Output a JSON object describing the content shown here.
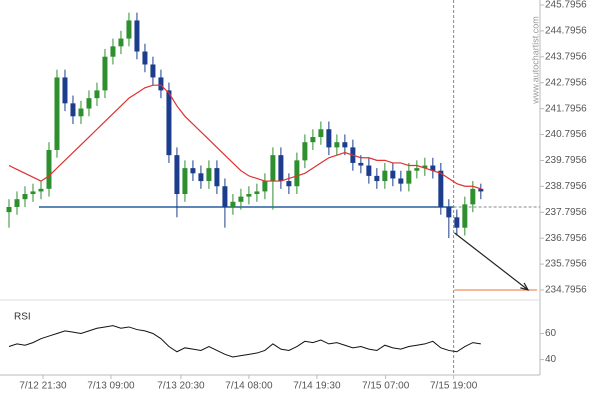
{
  "chart_data": [
    {
      "type": "candlestick",
      "watermark": "www.autochartist.com",
      "xlim": [
        -0.5,
        66.4
      ],
      "xticks": [
        {
          "value": 4.25,
          "label": "7/12 21:30"
        },
        {
          "value": 12.75,
          "label": "7/13 09:00"
        },
        {
          "value": 21.5,
          "label": "7/13 20:30"
        },
        {
          "value": 30,
          "label": "7/14 08:00"
        },
        {
          "value": 38.5,
          "label": "7/14 19:30"
        },
        {
          "value": 47.1,
          "label": "7/15 07:00"
        },
        {
          "value": 55.6,
          "label": "7/15 19:00"
        }
      ],
      "ylim": [
        234.7956,
        245.7956
      ],
      "yticks": [
        234.7956,
        235.7956,
        236.7956,
        237.7956,
        238.7956,
        239.7956,
        240.7956,
        241.7956,
        242.7956,
        243.7956,
        244.7956,
        245.7956
      ],
      "up_color": "#2f8f2f",
      "down_color": "#1c3c8c",
      "open": [
        237.8,
        238.0,
        238.3,
        238.5,
        238.6,
        238.7,
        240.2,
        243.0,
        242.0,
        241.5,
        241.8,
        242.2,
        242.5,
        243.8,
        244.2,
        244.5,
        245.2,
        244.0,
        243.5,
        243.0,
        242.5,
        240.0,
        238.5,
        239.5,
        239.3,
        239.0,
        239.5,
        238.8,
        238.0,
        238.2,
        238.4,
        238.5,
        238.6,
        239.0,
        240.0,
        239.0,
        238.8,
        239.8,
        240.5,
        240.7,
        241.0,
        240.3,
        240.5,
        240.3,
        239.7,
        239.6,
        239.2,
        239.0,
        239.4,
        239.1,
        238.9,
        239.4,
        239.5,
        239.6,
        239.4,
        238.0,
        237.6,
        237.2,
        238.1,
        238.7
      ],
      "high": [
        238.3,
        238.6,
        238.8,
        238.9,
        239.0,
        240.5,
        243.3,
        243.3,
        242.3,
        242.1,
        242.5,
        242.8,
        244.1,
        244.5,
        244.8,
        245.5,
        245.5,
        244.3,
        243.8,
        243.3,
        242.8,
        240.3,
        239.8,
        239.8,
        239.6,
        239.8,
        239.8,
        239.1,
        238.5,
        238.7,
        238.8,
        238.9,
        239.3,
        240.3,
        240.3,
        239.3,
        240.1,
        240.8,
        241.0,
        241.3,
        241.3,
        240.8,
        240.8,
        240.6,
        240.0,
        239.9,
        239.5,
        239.7,
        239.7,
        239.4,
        239.7,
        239.8,
        239.9,
        239.9,
        239.7,
        238.3,
        237.9,
        238.4,
        239.0,
        238.9
      ],
      "low": [
        237.2,
        237.7,
        238.0,
        238.2,
        238.3,
        238.4,
        239.9,
        241.7,
        241.2,
        241.2,
        241.5,
        241.9,
        242.2,
        243.5,
        243.9,
        244.2,
        243.7,
        243.2,
        242.7,
        242.2,
        239.7,
        237.6,
        238.2,
        239.0,
        238.7,
        238.7,
        238.5,
        237.2,
        237.7,
        237.9,
        238.1,
        238.2,
        238.3,
        237.9,
        238.7,
        238.5,
        238.5,
        239.5,
        240.2,
        240.4,
        240.0,
        240.0,
        240.0,
        239.4,
        239.3,
        238.9,
        238.7,
        238.7,
        238.8,
        238.6,
        238.6,
        239.1,
        239.2,
        239.1,
        237.7,
        236.8,
        236.9,
        236.9,
        237.8,
        238.3
      ],
      "close": [
        238.0,
        238.3,
        238.5,
        238.6,
        238.7,
        240.2,
        243.0,
        242.0,
        241.5,
        241.8,
        242.2,
        242.5,
        243.8,
        244.2,
        244.5,
        245.2,
        244.0,
        243.5,
        243.0,
        242.5,
        240.0,
        238.5,
        239.5,
        239.3,
        239.0,
        239.5,
        238.8,
        238.0,
        238.2,
        238.4,
        238.5,
        238.6,
        239.0,
        240.0,
        239.0,
        238.8,
        239.8,
        240.5,
        240.7,
        241.0,
        240.3,
        240.5,
        240.3,
        239.7,
        239.6,
        239.2,
        239.0,
        239.4,
        239.1,
        238.9,
        239.4,
        239.5,
        239.6,
        239.4,
        238.0,
        237.6,
        237.2,
        238.1,
        238.7,
        238.6
      ],
      "ma_color": "#e03030",
      "ma": [
        239.6,
        239.45,
        239.3,
        239.15,
        239.0,
        239.2,
        239.5,
        239.8,
        240.1,
        240.4,
        240.7,
        241.0,
        241.3,
        241.6,
        241.9,
        242.2,
        242.4,
        242.6,
        242.7,
        242.7,
        242.4,
        241.9,
        241.5,
        241.2,
        240.9,
        240.6,
        240.3,
        240.0,
        239.7,
        239.4,
        239.2,
        239.1,
        239.0,
        239.0,
        239.0,
        239.1,
        239.2,
        239.3,
        239.5,
        239.7,
        239.9,
        240.0,
        240.1,
        240.0,
        239.9,
        239.9,
        239.8,
        239.8,
        239.7,
        239.7,
        239.6,
        239.6,
        239.5,
        239.4,
        239.3,
        239.1,
        238.9,
        238.8,
        238.8,
        238.7
      ],
      "support": 238.0,
      "support_color": "#5b86b5",
      "now": 55.6,
      "arrow": {
        "x": [
          55.7,
          64.9
        ],
        "y": [
          237.0,
          234.8
        ]
      },
      "target": 234.7956,
      "target_color": "#f07030"
    },
    {
      "type": "line",
      "title": "RSI",
      "xlim": [
        -0.5,
        66.4
      ],
      "ylim": [
        32,
        78
      ],
      "yticks": [
        40,
        60
      ],
      "color": "#111111",
      "values": [
        50,
        52,
        51,
        53,
        56,
        58,
        60,
        62,
        61,
        60,
        62,
        64,
        65,
        66,
        64,
        65,
        63,
        62,
        60,
        56,
        50,
        46,
        49,
        48,
        47,
        50,
        47,
        44,
        42,
        43,
        44,
        45,
        47,
        52,
        48,
        47,
        50,
        54,
        53,
        55,
        52,
        53,
        51,
        49,
        50,
        48,
        47,
        51,
        49,
        48,
        50,
        51,
        52,
        54,
        49,
        47,
        46,
        50,
        53,
        52
      ]
    }
  ]
}
